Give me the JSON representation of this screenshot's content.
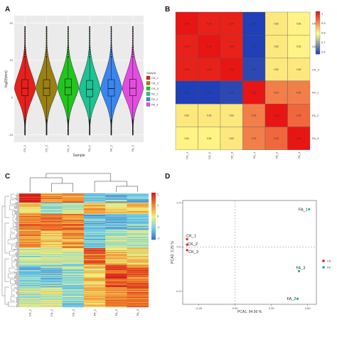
{
  "panels": {
    "a": "A",
    "b": "B",
    "c": "C",
    "d": "D"
  },
  "chart_data": [
    {
      "id": "violin",
      "type": "violin",
      "xlabel": "Sample",
      "ylabel": "log2(fpkm)",
      "ylim": [
        -12,
        22
      ],
      "yticks": [
        -10,
        0,
        10,
        20
      ],
      "categories": [
        "CK_1",
        "CK_2",
        "CK_3",
        "FA_1",
        "FA_2",
        "FA_3"
      ],
      "colors": [
        "#e8201c",
        "#9a8012",
        "#22c51e",
        "#1dc393",
        "#3a86f0",
        "#e44ce0"
      ],
      "median": [
        2.5,
        2.5,
        2.7,
        2.2,
        2.4,
        2.5
      ],
      "q1": [
        0.5,
        0.5,
        0.7,
        0.2,
        0.4,
        0.5
      ],
      "q3": [
        4.8,
        4.8,
        5.0,
        4.6,
        4.8,
        4.9
      ],
      "whisker_low": [
        -6,
        -6,
        -6,
        -6,
        -6,
        -6
      ],
      "whisker_high": [
        11,
        11,
        11,
        11,
        11,
        11
      ],
      "min": [
        -10,
        -10,
        -10,
        -10,
        -10,
        -10
      ],
      "max": [
        19,
        19,
        19,
        19,
        19,
        19
      ],
      "legend_title": "Sample",
      "legend_position": "right"
    },
    {
      "id": "correlation",
      "type": "heatmap",
      "rows": [
        "CK_1",
        "CK_2",
        "CK_3",
        "FA_1",
        "FA_2",
        "FA_3"
      ],
      "cols": [
        "CK_1",
        "CK_2",
        "CK_3",
        "FA_1",
        "FA_2",
        "FA_3"
      ],
      "values": [
        [
          1.0,
          0.99,
          0.99,
          0.61,
          0.82,
          0.81
        ],
        [
          0.99,
          1.0,
          0.99,
          0.61,
          0.82,
          0.81
        ],
        [
          0.99,
          0.99,
          1.0,
          0.62,
          0.82,
          0.82
        ],
        [
          0.61,
          0.61,
          0.62,
          1.0,
          0.91,
          0.91
        ],
        [
          0.82,
          0.82,
          0.82,
          0.91,
          1.0,
          0.93
        ],
        [
          0.81,
          0.81,
          0.82,
          0.91,
          0.93,
          1.0
        ]
      ],
      "cell_labels": [
        [
          "1.00",
          "0.99",
          "0.99",
          "0.61",
          "0.82",
          "0.81"
        ],
        [
          "0.99",
          "1.00",
          "0.99",
          "0.61",
          "0.82",
          "0.81"
        ],
        [
          "0.99",
          "0.99",
          "1.00",
          "0.62",
          "0.82",
          "0.82"
        ],
        [
          "0.61",
          "0.61",
          "0.62",
          "1.00",
          "0.91",
          "0.91"
        ],
        [
          "0.82",
          "0.82",
          "0.82",
          "0.91",
          "1.00",
          "0.93"
        ],
        [
          "0.81",
          "0.81",
          "0.82",
          "0.91",
          "0.93",
          "1.00"
        ]
      ],
      "colorbar_ticks": [
        "1",
        "0.9",
        "0.8",
        "0.7",
        "0.6"
      ],
      "color_range": [
        0.6,
        1.0
      ],
      "colormap": [
        "#1535b8",
        "#ffff8a",
        "#e81515"
      ]
    },
    {
      "id": "expression",
      "type": "heatmap",
      "cols": [
        "CK_1",
        "CK_2",
        "CK_3",
        "FA_1",
        "FA_2",
        "FA_3"
      ],
      "colorbar_ticks": [
        "2",
        "1",
        "0",
        "-1",
        "-2"
      ],
      "color_range": [
        -2,
        2
      ],
      "colormap": [
        "#3a64c8",
        "#6fd0ea",
        "#f3f07a",
        "#f08a2c",
        "#d91e1e"
      ],
      "clustering": "rows and columns (dendrograms)"
    },
    {
      "id": "pca",
      "type": "scatter",
      "xlabel": "PCA1: 94.56 %",
      "ylabel": "PCA2: 3.25 %",
      "xlim": [
        -0.36,
        0.56
      ],
      "ylim": [
        -0.52,
        0.42
      ],
      "xticks": [
        -0.25,
        0.0,
        0.25,
        0.5
      ],
      "xtick_labels": [
        "-0.25",
        "0.00",
        "0.25",
        "0.50"
      ],
      "yticks": [
        -0.4,
        0.0,
        0.4
      ],
      "ytick_labels": [
        "-0.4",
        "0.0",
        "0.4"
      ],
      "series": [
        {
          "name": "CK",
          "color": "#e41a1c",
          "points": [
            {
              "label": "CK_1",
              "x": -0.33,
              "y": 0.07
            },
            {
              "label": "CK_2",
              "x": -0.33,
              "y": 0.02
            },
            {
              "label": "CK_3",
              "x": -0.33,
              "y": -0.03
            }
          ]
        },
        {
          "name": "FA",
          "color": "#1fae9a",
          "points": [
            {
              "label": "FA_1",
              "x": 0.51,
              "y": 0.34
            },
            {
              "label": "FA_3",
              "x": 0.44,
              "y": -0.22
            },
            {
              "label": "FA_2",
              "x": 0.43,
              "y": -0.47
            }
          ]
        }
      ],
      "legend_position": "right"
    }
  ]
}
